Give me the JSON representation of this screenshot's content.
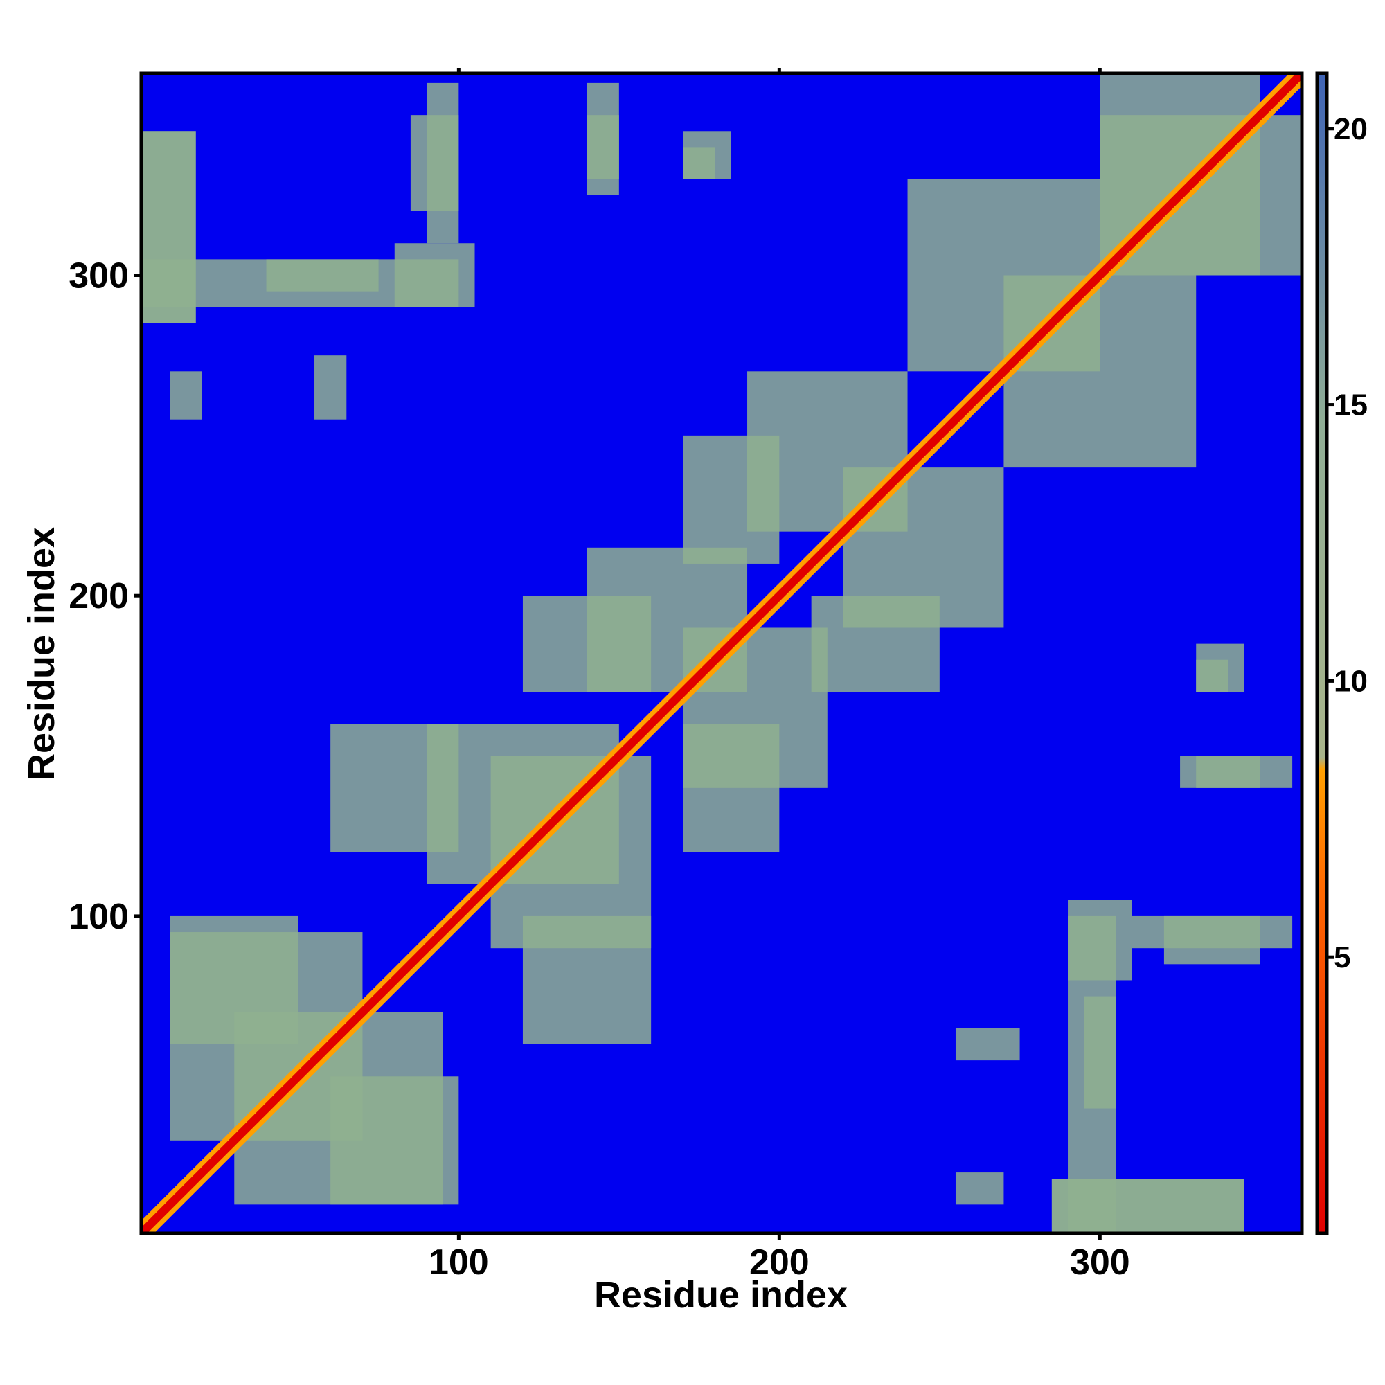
{
  "chart_data": {
    "type": "heatmap",
    "title": "",
    "xlabel": "Residue index",
    "ylabel": "Residue index",
    "xlim": [
      1,
      363
    ],
    "ylim": [
      1,
      363
    ],
    "x_ticks": [
      100,
      200,
      300
    ],
    "y_ticks": [
      100,
      200,
      300
    ],
    "x_tick_labels": [
      "100",
      "200",
      "300"
    ],
    "y_tick_labels": [
      "100",
      "200",
      "300"
    ],
    "colorbar": {
      "range": [
        0,
        21
      ],
      "ticks": [
        5,
        10,
        15,
        20
      ],
      "tick_labels": [
        "5",
        "10",
        "15",
        "20"
      ],
      "colors": {
        "low": "#e00000",
        "mid_low": "#ff8c00",
        "mid": "#8fb08f",
        "high": "#4a70b0",
        "background": "#0000f0"
      }
    },
    "symmetric": true,
    "diagonal": {
      "from": 1,
      "to": 363,
      "value": 2
    },
    "regions": [
      {
        "x": [
          1,
          18
        ],
        "y": [
          285,
          345
        ],
        "value": 10
      },
      {
        "x": [
          285,
          345
        ],
        "y": [
          1,
          18
        ],
        "value": 10
      },
      {
        "x": [
          40,
          75
        ],
        "y": [
          295,
          305
        ],
        "value": 10
      },
      {
        "x": [
          80,
          105
        ],
        "y": [
          290,
          310
        ],
        "value": 10
      },
      {
        "x": [
          85,
          100
        ],
        "y": [
          320,
          350
        ],
        "value": 10
      },
      {
        "x": [
          140,
          150
        ],
        "y": [
          325,
          350
        ],
        "value": 10
      },
      {
        "x": [
          170,
          185
        ],
        "y": [
          330,
          345
        ],
        "value": 10
      },
      {
        "x": [
          300,
          350
        ],
        "y": [
          300,
          363
        ],
        "value": 10
      },
      {
        "x": [
          55,
          65
        ],
        "y": [
          255,
          275
        ],
        "value": 10
      },
      {
        "x": [
          10,
          20
        ],
        "y": [
          255,
          270
        ],
        "value": 10
      },
      {
        "x": [
          10,
          70
        ],
        "y": [
          30,
          95
        ],
        "value": 10
      },
      {
        "x": [
          60,
          100
        ],
        "y": [
          10,
          50
        ],
        "value": 10
      },
      {
        "x": [
          90,
          150
        ],
        "y": [
          110,
          160
        ],
        "value": 10
      },
      {
        "x": [
          140,
          190
        ],
        "y": [
          170,
          215
        ],
        "value": 10
      },
      {
        "x": [
          190,
          240
        ],
        "y": [
          220,
          270
        ],
        "value": 10
      },
      {
        "x": [
          240,
          300
        ],
        "y": [
          270,
          330
        ],
        "value": 10
      },
      {
        "x": [
          120,
          160
        ],
        "y": [
          60,
          100
        ],
        "value": 10
      },
      {
        "x": [
          170,
          200
        ],
        "y": [
          120,
          160
        ],
        "value": 10
      },
      {
        "x": [
          210,
          250
        ],
        "y": [
          170,
          200
        ],
        "value": 10
      },
      {
        "x": [
          290,
          305
        ],
        "y": [
          1,
          100
        ],
        "value": 10
      },
      {
        "x": [
          310,
          360
        ],
        "y": [
          90,
          100
        ],
        "value": 10
      },
      {
        "x": [
          330,
          360
        ],
        "y": [
          140,
          150
        ],
        "value": 10
      },
      {
        "x": [
          330,
          340
        ],
        "y": [
          170,
          180
        ],
        "value": 10
      }
    ]
  }
}
